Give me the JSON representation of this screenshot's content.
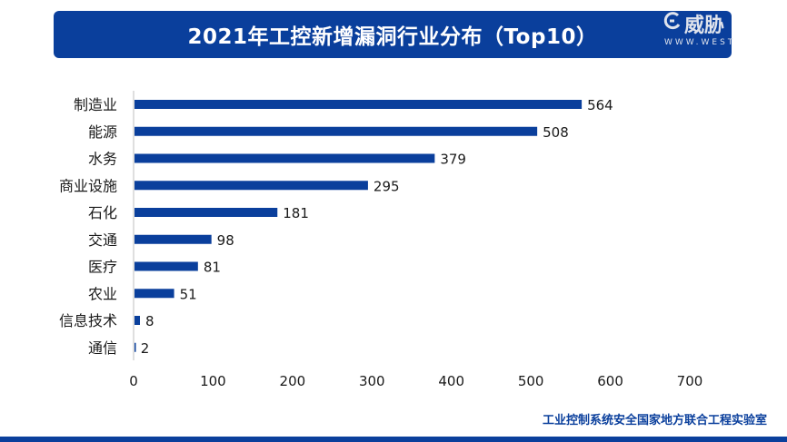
{
  "title": "2021年工控新增漏洞行业分布（Top10）",
  "footer": "工业控制系统安全国家地方联合工程实验室",
  "watermark": {
    "brand": "威胁",
    "latin": "WWW.WEST"
  },
  "colors": {
    "bar": "#0a3f9c",
    "banner": "#0a3f9c",
    "text": "#1a1a1a",
    "axis": "#bfbfbf"
  },
  "chart_data": {
    "type": "bar",
    "orientation": "horizontal",
    "categories": [
      "制造业",
      "能源",
      "水务",
      "商业设施",
      "石化",
      "交通",
      "医疗",
      "农业",
      "信息技术",
      "通信"
    ],
    "values": [
      564,
      508,
      379,
      295,
      181,
      98,
      81,
      51,
      8,
      2
    ],
    "xlim": [
      0,
      700
    ],
    "xticks": [
      0,
      100,
      200,
      300,
      400,
      500,
      600,
      700
    ],
    "grid": false,
    "data_labels": true
  }
}
